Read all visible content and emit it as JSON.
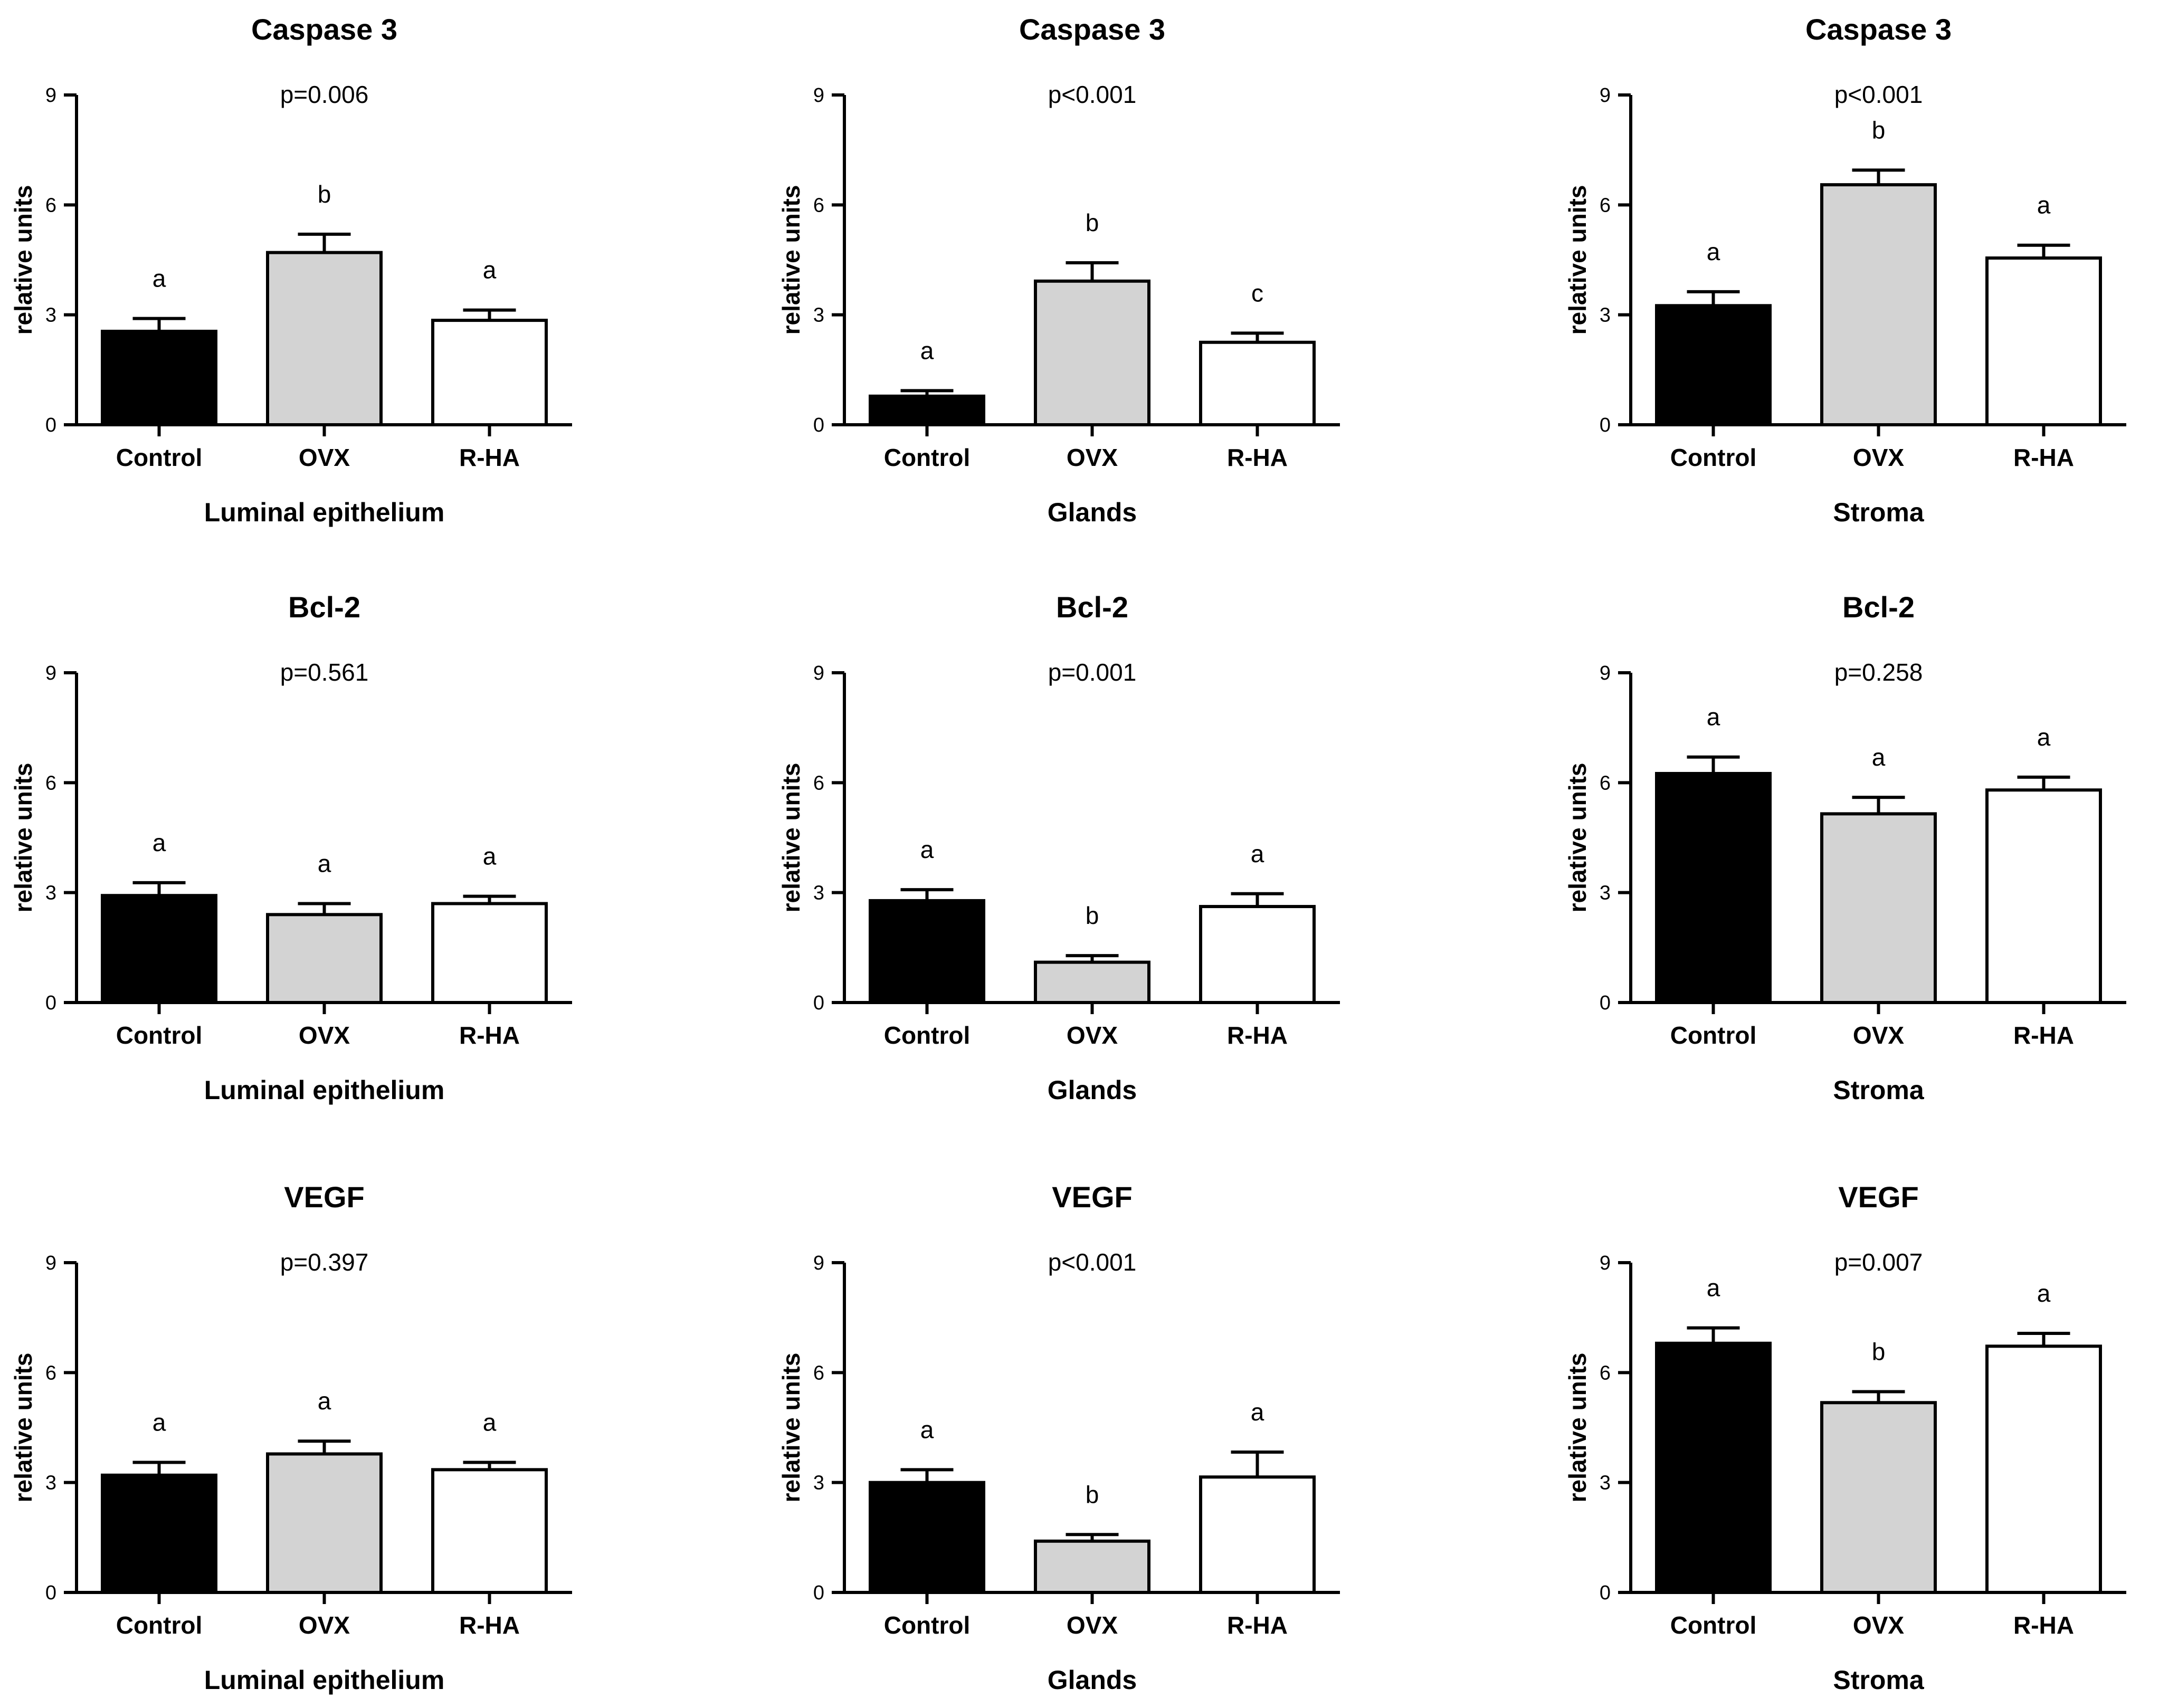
{
  "colors": {
    "Control": "#000000",
    "OVX": "#d3d3d3",
    "R-HA": "#ffffff"
  },
  "chart_data": [
    {
      "type": "bar",
      "title": "Caspase 3",
      "pvalue": "p=0.006",
      "xlabel": "Luminal epithelium",
      "ylabel": "relative units",
      "ylim": [
        0,
        9
      ],
      "yticks": [
        0,
        3,
        6,
        9
      ],
      "categories": [
        "Control",
        "OVX",
        "R-HA"
      ],
      "values": [
        2.55,
        4.7,
        2.85
      ],
      "errors": [
        0.35,
        0.5,
        0.28
      ],
      "letters": [
        "a",
        "b",
        "a"
      ]
    },
    {
      "type": "bar",
      "title": "Caspase 3",
      "pvalue": "p<0.001",
      "xlabel": "Glands",
      "ylabel": "relative units",
      "ylim": [
        0,
        9
      ],
      "yticks": [
        0,
        3,
        6,
        9
      ],
      "categories": [
        "Control",
        "OVX",
        "R-HA"
      ],
      "values": [
        0.78,
        3.92,
        2.25
      ],
      "errors": [
        0.15,
        0.5,
        0.25
      ],
      "letters": [
        "a",
        "b",
        "c"
      ]
    },
    {
      "type": "bar",
      "title": "Caspase 3",
      "pvalue": "p<0.001",
      "xlabel": "Stroma",
      "ylabel": "relative units",
      "ylim": [
        0,
        9
      ],
      "yticks": [
        0,
        3,
        6,
        9
      ],
      "categories": [
        "Control",
        "OVX",
        "R-HA"
      ],
      "values": [
        3.25,
        6.55,
        4.55
      ],
      "errors": [
        0.38,
        0.4,
        0.35
      ],
      "letters": [
        "a",
        "b",
        "a"
      ]
    },
    {
      "type": "bar",
      "title": "Bcl-2",
      "pvalue": "p=0.561",
      "xlabel": "Luminal epithelium",
      "ylabel": "relative units",
      "ylim": [
        0,
        9
      ],
      "yticks": [
        0,
        3,
        6,
        9
      ],
      "categories": [
        "Control",
        "OVX",
        "R-HA"
      ],
      "values": [
        2.92,
        2.4,
        2.7
      ],
      "errors": [
        0.35,
        0.3,
        0.2
      ],
      "letters": [
        "a",
        "a",
        "a"
      ]
    },
    {
      "type": "bar",
      "title": "Bcl-2",
      "pvalue": "p=0.001",
      "xlabel": "Glands",
      "ylabel": "relative units",
      "ylim": [
        0,
        9
      ],
      "yticks": [
        0,
        3,
        6,
        9
      ],
      "categories": [
        "Control",
        "OVX",
        "R-HA"
      ],
      "values": [
        2.78,
        1.1,
        2.62
      ],
      "errors": [
        0.3,
        0.18,
        0.35
      ],
      "letters": [
        "a",
        "b",
        "a"
      ]
    },
    {
      "type": "bar",
      "title": "Bcl-2",
      "pvalue": "p=0.258",
      "xlabel": "Stroma",
      "ylabel": "relative units",
      "ylim": [
        0,
        9
      ],
      "yticks": [
        0,
        3,
        6,
        9
      ],
      "categories": [
        "Control",
        "OVX",
        "R-HA"
      ],
      "values": [
        6.25,
        5.15,
        5.8
      ],
      "errors": [
        0.45,
        0.45,
        0.35
      ],
      "letters": [
        "a",
        "a",
        "a"
      ]
    },
    {
      "type": "bar",
      "title": "VEGF",
      "pvalue": "p=0.397",
      "xlabel": "Luminal epithelium",
      "ylabel": "relative units",
      "ylim": [
        0,
        9
      ],
      "yticks": [
        0,
        3,
        6,
        9
      ],
      "categories": [
        "Control",
        "OVX",
        "R-HA"
      ],
      "values": [
        3.2,
        3.78,
        3.35
      ],
      "errors": [
        0.35,
        0.35,
        0.2
      ],
      "letters": [
        "a",
        "a",
        "a"
      ]
    },
    {
      "type": "bar",
      "title": "VEGF",
      "pvalue": "p<0.001",
      "xlabel": "Glands",
      "ylabel": "relative units",
      "ylim": [
        0,
        9
      ],
      "yticks": [
        0,
        3,
        6,
        9
      ],
      "categories": [
        "Control",
        "OVX",
        "R-HA"
      ],
      "values": [
        3.0,
        1.4,
        3.15
      ],
      "errors": [
        0.35,
        0.18,
        0.68
      ],
      "letters": [
        "a",
        "b",
        "a"
      ]
    },
    {
      "type": "bar",
      "title": "VEGF",
      "pvalue": "p=0.007",
      "xlabel": "Stroma",
      "ylabel": "relative units",
      "ylim": [
        0,
        9
      ],
      "yticks": [
        0,
        3,
        6,
        9
      ],
      "categories": [
        "Control",
        "OVX",
        "R-HA"
      ],
      "values": [
        6.8,
        5.18,
        6.72
      ],
      "errors": [
        0.42,
        0.3,
        0.35
      ],
      "letters": [
        "a",
        "b",
        "a"
      ]
    }
  ]
}
